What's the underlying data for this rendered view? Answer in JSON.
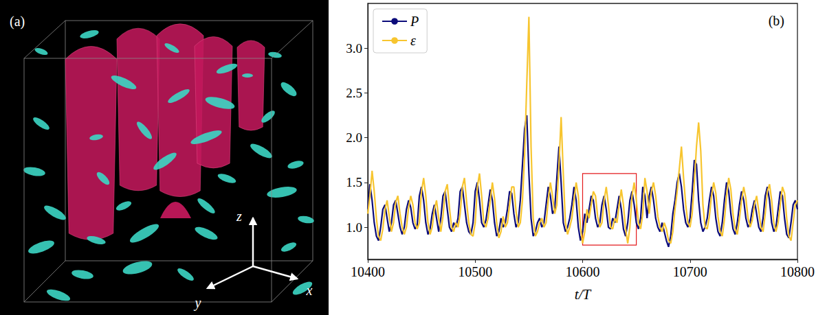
{
  "panel_a": {
    "label": "(a)",
    "axis_labels": [
      "x",
      "y",
      "z"
    ]
  },
  "chart_data": {
    "type": "line",
    "title": "(b)",
    "x_label": "t/T",
    "xlim": [
      10400,
      10800
    ],
    "xticks": [
      10400,
      10500,
      10600,
      10700,
      10800
    ],
    "ylim": [
      0.64,
      3.5
    ],
    "yticks": [
      {
        "value": 1.0,
        "label": "1.0"
      },
      {
        "value": 1.5,
        "label": "1.5"
      },
      {
        "value": 2.0,
        "label": "2.0"
      },
      {
        "value": 2.5,
        "label": "2.5"
      },
      {
        "value": 3.0,
        "label": "3.0"
      }
    ],
    "grid": false,
    "legend": "upper left",
    "highlight": {
      "xlim": [
        10600,
        10650
      ],
      "ylim": [
        0.8,
        1.6
      ],
      "color": "#e41a1c"
    },
    "x": [
      10400,
      10402,
      10404,
      10406,
      10408,
      10410,
      10412,
      10414,
      10416,
      10418,
      10420,
      10422,
      10424,
      10426,
      10428,
      10430,
      10432,
      10434,
      10436,
      10438,
      10440,
      10442,
      10444,
      10446,
      10448,
      10450,
      10452,
      10454,
      10456,
      10458,
      10460,
      10462,
      10464,
      10466,
      10468,
      10470,
      10472,
      10474,
      10476,
      10478,
      10480,
      10482,
      10484,
      10486,
      10488,
      10490,
      10492,
      10494,
      10496,
      10498,
      10500,
      10502,
      10504,
      10506,
      10508,
      10510,
      10512,
      10514,
      10516,
      10518,
      10520,
      10522,
      10524,
      10526,
      10528,
      10530,
      10532,
      10534,
      10536,
      10538,
      10540,
      10542,
      10544,
      10546,
      10548,
      10550,
      10552,
      10554,
      10556,
      10558,
      10560,
      10562,
      10564,
      10566,
      10568,
      10570,
      10572,
      10574,
      10576,
      10578,
      10580,
      10582,
      10584,
      10586,
      10588,
      10590,
      10592,
      10594,
      10596,
      10598,
      10600,
      10602,
      10604,
      10606,
      10608,
      10610,
      10612,
      10614,
      10616,
      10618,
      10620,
      10622,
      10624,
      10626,
      10628,
      10630,
      10632,
      10634,
      10636,
      10638,
      10640,
      10642,
      10644,
      10646,
      10648,
      10650,
      10652,
      10654,
      10656,
      10658,
      10660,
      10662,
      10664,
      10666,
      10668,
      10670,
      10672,
      10674,
      10676,
      10678,
      10680,
      10682,
      10684,
      10686,
      10688,
      10690,
      10692,
      10694,
      10696,
      10698,
      10700,
      10702,
      10704,
      10706,
      10708,
      10710,
      10712,
      10714,
      10716,
      10718,
      10720,
      10722,
      10724,
      10726,
      10728,
      10730,
      10732,
      10734,
      10736,
      10738,
      10740,
      10742,
      10744,
      10746,
      10748,
      10750,
      10752,
      10754,
      10756,
      10758,
      10760,
      10762,
      10764,
      10766,
      10768,
      10770,
      10772,
      10774,
      10776,
      10778,
      10780,
      10782,
      10784,
      10786,
      10788,
      10790,
      10792,
      10794,
      10796,
      10798,
      10800
    ],
    "series": [
      {
        "name": "P",
        "color": "#0b0b7a",
        "values": [
          1.2,
          1.48,
          1.3,
          1.05,
          0.9,
          0.85,
          1.0,
          1.2,
          1.25,
          1.1,
          0.95,
          1.05,
          1.25,
          1.3,
          1.15,
          1.0,
          0.92,
          1.0,
          1.2,
          1.3,
          1.22,
          1.05,
          0.98,
          1.02,
          1.35,
          1.45,
          1.3,
          1.05,
          0.92,
          0.98,
          1.15,
          1.25,
          1.1,
          0.95,
          1.1,
          1.35,
          1.4,
          1.2,
          1.0,
          0.95,
          1.05,
          1.0,
          1.1,
          1.4,
          1.45,
          1.25,
          1.05,
          0.95,
          0.92,
          1.05,
          1.4,
          1.5,
          1.3,
          1.05,
          1.0,
          1.08,
          1.25,
          1.42,
          1.3,
          1.05,
          0.9,
          0.95,
          1.1,
          1.0,
          1.05,
          1.2,
          1.4,
          1.38,
          1.15,
          1.0,
          1.05,
          1.3,
          1.7,
          2.1,
          2.25,
          1.6,
          1.1,
          0.9,
          0.95,
          1.05,
          1.1,
          1.0,
          1.05,
          1.25,
          1.45,
          1.35,
          1.15,
          1.2,
          1.55,
          1.9,
          1.5,
          1.05,
          0.95,
          1.0,
          1.1,
          1.25,
          1.45,
          1.3,
          1.0,
          0.85,
          0.95,
          1.15,
          1.05,
          1.2,
          1.35,
          1.3,
          1.1,
          1.0,
          1.05,
          1.25,
          1.35,
          1.2,
          1.0,
          0.98,
          1.1,
          1.05,
          1.2,
          1.35,
          1.2,
          0.98,
          0.9,
          1.05,
          1.3,
          1.4,
          1.25,
          1.05,
          0.98,
          1.1,
          1.45,
          1.35,
          1.1,
          1.35,
          1.45,
          1.3,
          1.1,
          1.0,
          0.95,
          1.05,
          0.95,
          0.85,
          0.78,
          0.9,
          1.15,
          1.3,
          1.5,
          1.6,
          1.45,
          1.2,
          1.05,
          1.0,
          1.1,
          1.4,
          1.75,
          1.7,
          1.3,
          1.05,
          0.95,
          1.0,
          1.1,
          1.3,
          1.45,
          1.35,
          1.1,
          0.95,
          0.9,
          1.05,
          1.3,
          1.5,
          1.4,
          1.15,
          0.98,
          0.92,
          1.05,
          1.25,
          1.4,
          1.3,
          1.1,
          1.0,
          1.05,
          1.2,
          1.3,
          1.15,
          1.0,
          0.95,
          1.1,
          1.35,
          1.45,
          1.3,
          1.05,
          0.95,
          1.0,
          1.2,
          1.4,
          1.35,
          1.1,
          0.92,
          0.88,
          1.05,
          1.25,
          1.3,
          1.2
        ]
      },
      {
        "name": "ε",
        "color": "#f7c52f",
        "values": [
          1.15,
          1.35,
          1.63,
          1.4,
          1.1,
          0.9,
          0.85,
          0.98,
          1.2,
          1.3,
          1.12,
          0.95,
          1.05,
          1.28,
          1.35,
          1.15,
          1.0,
          0.92,
          1.0,
          1.22,
          1.35,
          1.25,
          1.05,
          0.98,
          1.05,
          1.4,
          1.55,
          1.35,
          1.05,
          0.92,
          1.0,
          1.2,
          1.3,
          1.1,
          0.95,
          1.12,
          1.4,
          1.48,
          1.22,
          1.0,
          0.95,
          1.05,
          1.0,
          1.15,
          1.45,
          1.55,
          1.28,
          1.05,
          0.92,
          0.9,
          1.05,
          1.45,
          1.6,
          1.35,
          1.05,
          1.0,
          1.1,
          1.3,
          1.5,
          1.32,
          1.05,
          0.88,
          0.95,
          1.12,
          1.0,
          1.05,
          1.25,
          1.45,
          1.45,
          1.18,
          1.0,
          1.05,
          1.3,
          1.8,
          2.6,
          3.35,
          1.9,
          1.1,
          0.9,
          0.95,
          1.05,
          1.1,
          1.0,
          1.05,
          1.3,
          1.5,
          1.35,
          1.15,
          1.25,
          1.7,
          2.23,
          1.6,
          1.05,
          0.92,
          1.0,
          1.1,
          1.3,
          1.5,
          1.35,
          1.0,
          0.82,
          0.95,
          1.2,
          1.1,
          1.25,
          1.4,
          1.35,
          1.12,
          1.0,
          1.05,
          1.3,
          1.45,
          1.25,
          1.0,
          0.98,
          1.1,
          1.05,
          1.25,
          1.42,
          1.25,
          0.98,
          0.82,
          1.0,
          1.35,
          1.5,
          1.3,
          1.05,
          0.98,
          1.15,
          1.55,
          1.4,
          1.15,
          1.4,
          1.5,
          1.35,
          1.12,
          1.0,
          0.95,
          1.05,
          0.98,
          0.85,
          0.82,
          0.95,
          1.2,
          1.4,
          1.65,
          1.9,
          1.55,
          1.25,
          1.05,
          1.0,
          1.15,
          1.5,
          1.9,
          2.17,
          1.85,
          1.25,
          1.0,
          0.98,
          1.12,
          1.35,
          1.5,
          1.38,
          1.12,
          0.95,
          0.9,
          1.08,
          1.35,
          1.55,
          1.42,
          1.15,
          0.98,
          0.92,
          1.1,
          1.3,
          1.45,
          1.32,
          1.1,
          1.0,
          1.08,
          1.25,
          1.35,
          1.18,
          1.0,
          0.95,
          1.15,
          1.4,
          1.48,
          1.3,
          1.05,
          0.95,
          1.05,
          1.25,
          1.45,
          1.38,
          1.1,
          0.9,
          0.85,
          1.05,
          1.25,
          1.3
        ]
      }
    ]
  }
}
